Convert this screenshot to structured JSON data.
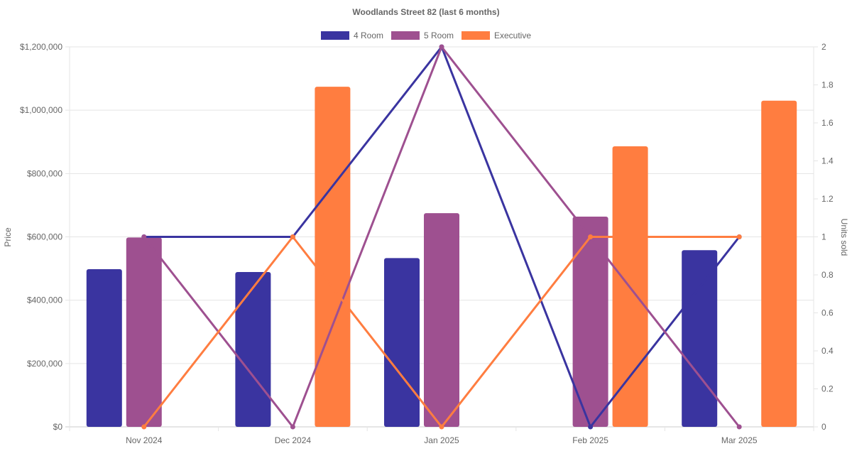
{
  "chart_data": {
    "type": "bar",
    "title": "Woodlands Street 82 (last 6 months)",
    "categories": [
      "Nov 2024",
      "Dec 2024",
      "Jan 2025",
      "Feb 2025",
      "Mar 2025"
    ],
    "ylabel": "Price",
    "y2label": "Units sold",
    "ylim": [
      0,
      1200000
    ],
    "y2lim": [
      0,
      2
    ],
    "yticks": [
      "$0",
      "$200,000",
      "$400,000",
      "$600,000",
      "$800,000",
      "$1,000,000",
      "$1,200,000"
    ],
    "y2ticks": [
      "0",
      "0.2",
      "0.4",
      "0.6",
      "0.8",
      "1",
      "1.2",
      "1.4",
      "1.6",
      "1.8",
      "2"
    ],
    "legend_position": "top",
    "grid": true,
    "series": [
      {
        "name": "4 Room",
        "color": "#3a34a0",
        "price": [
          498000,
          489000,
          533000,
          null,
          558000
        ],
        "units": [
          1,
          1,
          2,
          0,
          1
        ]
      },
      {
        "name": "5 Room",
        "color": "#9e5090",
        "price": [
          598000,
          null,
          675000,
          664000,
          null
        ],
        "units": [
          1,
          0,
          2,
          1,
          0
        ]
      },
      {
        "name": "Executive",
        "color": "#ff7d40",
        "price": [
          null,
          1074000,
          null,
          886000,
          1030000
        ],
        "units": [
          0,
          1,
          0,
          1,
          1
        ]
      }
    ]
  }
}
